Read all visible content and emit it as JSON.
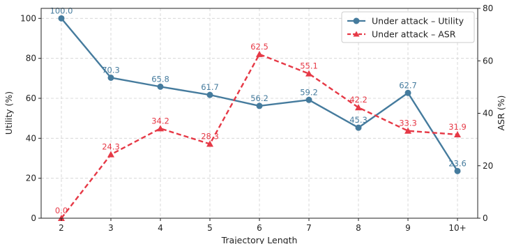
{
  "chart_data": {
    "type": "line",
    "categories": [
      "2",
      "3",
      "4",
      "5",
      "6",
      "7",
      "8",
      "9",
      "10+"
    ],
    "xlabel": "Trajectory Length",
    "ylabel": "Utility (%)",
    "ylabel_right": "ASR (%)",
    "ylim": [
      0,
      105
    ],
    "ylim_right": [
      0,
      80
    ],
    "yticks": [
      0,
      20,
      40,
      60,
      80,
      100
    ],
    "yticks_right": [
      0,
      20,
      40,
      60,
      80
    ],
    "grid": true,
    "legend_position": "top-right",
    "series": [
      {
        "name": "Under attack – Utility",
        "axis": "left",
        "color": "#457b9d",
        "marker": "circle",
        "line_style": "solid",
        "values": [
          100.0,
          70.3,
          65.8,
          61.7,
          56.2,
          59.2,
          45.3,
          62.7,
          23.6
        ],
        "labels": [
          "100.0",
          "70.3",
          "65.8",
          "61.7",
          "56.2",
          "59.2",
          "45.3",
          "62.7",
          "23.6"
        ]
      },
      {
        "name": "Under attack – ASR",
        "axis": "right",
        "color": "#e63946",
        "marker": "triangle",
        "line_style": "dashed",
        "values": [
          0.0,
          24.3,
          34.2,
          28.3,
          62.5,
          55.1,
          42.2,
          33.3,
          31.9
        ],
        "labels": [
          "0.0",
          "24.3",
          "34.2",
          "28.3",
          "62.5",
          "55.1",
          "42.2",
          "33.3",
          "31.9"
        ]
      }
    ]
  }
}
